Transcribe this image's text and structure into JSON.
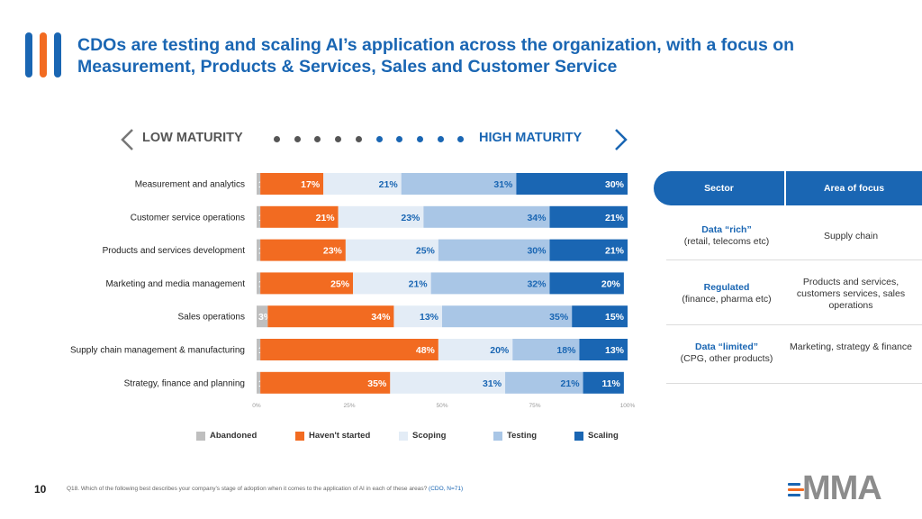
{
  "header": {
    "title": "CDOs are testing and scaling AI’s application across the organization, with a focus on Measurement, Products & Services, Sales and Customer Service"
  },
  "maturity_scale": {
    "low_label": "LOW MATURITY",
    "high_label": "HIGH MATURITY",
    "dot_count": 10,
    "low_color": "#555555",
    "high_color": "#1a66b3"
  },
  "chart_data": {
    "type": "bar",
    "orientation": "horizontal",
    "stacked": true,
    "categories": [
      "Measurement and analytics",
      "Customer service operations",
      "Products and services development",
      "Marketing and media management",
      "Sales operations",
      "Supply chain management & manufacturing",
      "Strategy, finance and planning"
    ],
    "series": [
      {
        "name": "Abandoned",
        "color": "#bfbfbf",
        "label_color": "#ffffff",
        "values": [
          1,
          1,
          1,
          1,
          3,
          1,
          1
        ]
      },
      {
        "name": "Haven't started",
        "color": "#f26b21",
        "label_color": "#ffffff",
        "values": [
          17,
          21,
          23,
          25,
          34,
          48,
          35
        ]
      },
      {
        "name": "Scoping",
        "color": "#e3ecf6",
        "label_color": "#1a66b3",
        "values": [
          21,
          23,
          25,
          21,
          13,
          20,
          31
        ]
      },
      {
        "name": "Testing",
        "color": "#a9c6e6",
        "label_color": "#1a66b3",
        "values": [
          31,
          34,
          30,
          32,
          35,
          18,
          21
        ]
      },
      {
        "name": "Scaling",
        "color": "#1a66b3",
        "label_color": "#ffffff",
        "values": [
          30,
          21,
          21,
          20,
          15,
          13,
          11
        ]
      }
    ],
    "xlim": [
      0,
      100
    ],
    "x_ticks": [
      "0%",
      "25%",
      "50%",
      "75%",
      "100%"
    ],
    "grid": false,
    "legend_position": "bottom"
  },
  "table": {
    "headers": {
      "sector": "Sector",
      "focus": "Area of focus"
    },
    "rows": [
      {
        "sector_name": "Data “rich”",
        "sector_detail": "(retail, telecoms etc)",
        "focus": "Supply chain"
      },
      {
        "sector_name": "Regulated",
        "sector_detail": "(finance, pharma etc)",
        "focus": "Products and services, customers services, sales operations"
      },
      {
        "sector_name": "Data “limited”",
        "sector_detail": "(CPG, other products)",
        "focus": "Marketing, strategy & finance"
      }
    ]
  },
  "footer": {
    "page_number": "10",
    "question": "Q18. Which of the following best describes your company’s stage of adoption when it comes to the application of AI in each of these areas?",
    "sample": "(CDO, N=71)",
    "brand": "MMA"
  }
}
